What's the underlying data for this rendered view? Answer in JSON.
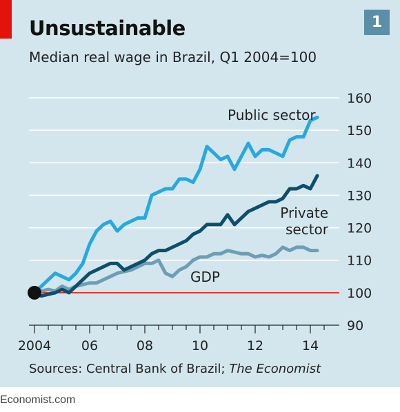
{
  "header": {
    "title": "Unsustainable",
    "subtitle": "Median real wage in Brazil, Q1 2004=100",
    "chart_number": "1"
  },
  "source": {
    "prefix": "Sources: Central Bank of Brazil; ",
    "italic": "The Economist"
  },
  "footer": "Economist.com",
  "colors": {
    "background": "#d3e6ee",
    "public": "#25a9e0",
    "private": "#0d4f6b",
    "gdp": "#6d9eb4",
    "baseline": "#e3120b",
    "accent_red": "#e3120b",
    "badge": "#5b8fa8"
  },
  "chart_data": {
    "type": "line",
    "title": "Unsustainable",
    "subtitle": "Median real wage in Brazil, Q1 2004=100",
    "xlabel": "",
    "ylabel": "",
    "xlim": [
      2004,
      2014.5
    ],
    "ylim": [
      90,
      160
    ],
    "x_ticks": [
      2004,
      2006,
      2008,
      2010,
      2012,
      2014
    ],
    "x_tick_labels": [
      "2004",
      "06",
      "08",
      "10",
      "12",
      "14"
    ],
    "y_ticks": [
      90,
      100,
      110,
      120,
      130,
      140,
      150,
      160
    ],
    "y_tick_labels": [
      "90",
      "100",
      "110",
      "120",
      "130",
      "140",
      "150",
      "160"
    ],
    "baseline": 100,
    "grid": true,
    "series": [
      {
        "name": "Public sector",
        "label_lines": [
          "Public sector"
        ],
        "color_key": "public",
        "x": [
          2004.0,
          2004.25,
          2004.5,
          2004.75,
          2005.0,
          2005.25,
          2005.5,
          2005.75,
          2006.0,
          2006.25,
          2006.5,
          2006.75,
          2007.0,
          2007.25,
          2007.5,
          2007.75,
          2008.0,
          2008.25,
          2008.5,
          2008.75,
          2009.0,
          2009.25,
          2009.5,
          2009.75,
          2010.0,
          2010.25,
          2010.5,
          2010.75,
          2011.0,
          2011.25,
          2011.5,
          2011.75,
          2012.0,
          2012.25,
          2012.5,
          2012.75,
          2013.0,
          2013.25,
          2013.5,
          2013.75,
          2014.0,
          2014.25
        ],
        "values": [
          100,
          102,
          104,
          106,
          105,
          104,
          106,
          109,
          115,
          119,
          121,
          122,
          119,
          121,
          122,
          123,
          123,
          130,
          131,
          132,
          132,
          135,
          135,
          134,
          138,
          145,
          143,
          141,
          142,
          138,
          142,
          146,
          142,
          144,
          144,
          143,
          142,
          147,
          148,
          148,
          153,
          154
        ]
      },
      {
        "name": "Private sector",
        "label_lines": [
          "Private",
          "sector"
        ],
        "color_key": "private",
        "x": [
          2004.0,
          2004.25,
          2004.5,
          2004.75,
          2005.0,
          2005.25,
          2005.5,
          2005.75,
          2006.0,
          2006.25,
          2006.5,
          2006.75,
          2007.0,
          2007.25,
          2007.5,
          2007.75,
          2008.0,
          2008.25,
          2008.5,
          2008.75,
          2009.0,
          2009.25,
          2009.5,
          2009.75,
          2010.0,
          2010.25,
          2010.5,
          2010.75,
          2011.0,
          2011.25,
          2011.5,
          2011.75,
          2012.0,
          2012.25,
          2012.5,
          2012.75,
          2013.0,
          2013.25,
          2013.5,
          2013.75,
          2014.0,
          2014.25
        ],
        "values": [
          100,
          99,
          99.5,
          100,
          101,
          100,
          102,
          104,
          106,
          107,
          108,
          109,
          109,
          107,
          108,
          109,
          110,
          112,
          113,
          113,
          114,
          115,
          116,
          118,
          119,
          121,
          121,
          121,
          124,
          121,
          123,
          125,
          126,
          127,
          128,
          128,
          129,
          132,
          132,
          133,
          132,
          136
        ]
      },
      {
        "name": "GDP",
        "label_lines": [
          "GDP"
        ],
        "color_key": "gdp",
        "x": [
          2004.0,
          2004.25,
          2004.5,
          2004.75,
          2005.0,
          2005.25,
          2005.5,
          2005.75,
          2006.0,
          2006.25,
          2006.5,
          2006.75,
          2007.0,
          2007.25,
          2007.5,
          2007.75,
          2008.0,
          2008.25,
          2008.5,
          2008.75,
          2009.0,
          2009.25,
          2009.5,
          2009.75,
          2010.0,
          2010.25,
          2010.5,
          2010.75,
          2011.0,
          2011.25,
          2011.5,
          2011.75,
          2012.0,
          2012.25,
          2012.5,
          2012.75,
          2013.0,
          2013.25,
          2013.5,
          2013.75,
          2014.0,
          2014.25
        ],
        "values": [
          100,
          100.5,
          101,
          100.5,
          102,
          101,
          102,
          102.5,
          103,
          103,
          104,
          105,
          106,
          106.5,
          107,
          108,
          109,
          109,
          110,
          106,
          105,
          107,
          108,
          110,
          111,
          111,
          112,
          112,
          113,
          112.5,
          112,
          112,
          111,
          111.5,
          111,
          112,
          114,
          113,
          114,
          114,
          113,
          113
        ]
      }
    ]
  }
}
